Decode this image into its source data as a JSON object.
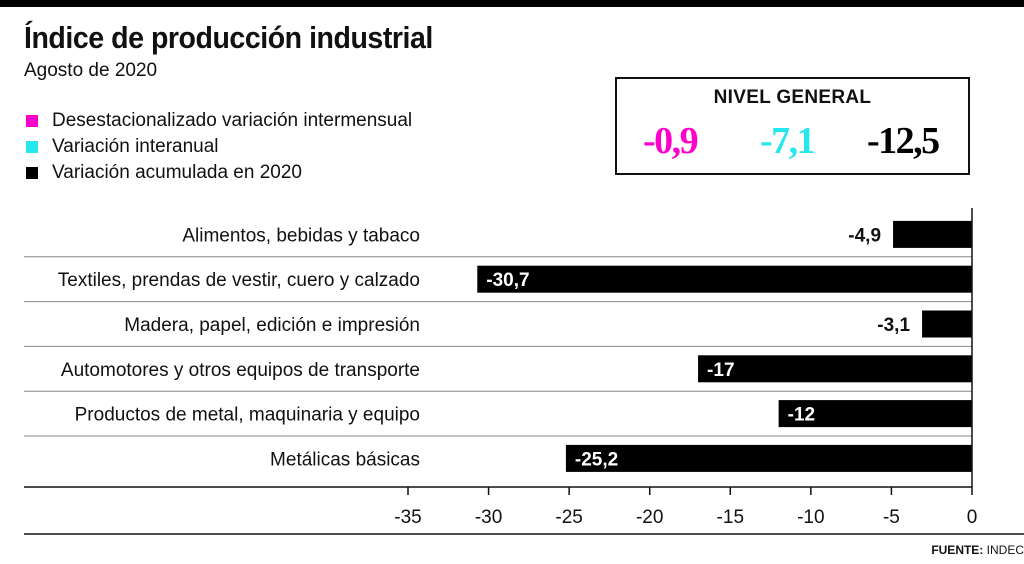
{
  "header": {
    "title": "Índice de producción industrial",
    "subtitle": "Agosto de 2020"
  },
  "legend": [
    {
      "label": "Desestacionalizado variación intermensual",
      "color": "#ff00cc"
    },
    {
      "label": "Variación interanual",
      "color": "#26e6f0"
    },
    {
      "label": "Variación acumulada en 2020",
      "color": "#000000"
    }
  ],
  "nivel_general": {
    "title": "NIVEL GENERAL",
    "values": [
      {
        "text": "-0,9",
        "color": "#ff00cc"
      },
      {
        "text": "-7,1",
        "color": "#26e6f0"
      },
      {
        "text": "-12,5",
        "color": "#000000"
      }
    ]
  },
  "chart_data": {
    "type": "bar",
    "orientation": "horizontal",
    "categories": [
      "Alimentos, bebidas y tabaco",
      "Textiles, prendas de vestir, cuero y calzado",
      "Madera, papel, edición e impresión",
      "Automotores y otros equipos de transporte",
      "Productos de metal, maquinaria y equipo",
      "Metálicas básicas"
    ],
    "values": [
      -4.9,
      -30.7,
      -3.1,
      -17,
      -12,
      -25.2
    ],
    "value_labels": [
      "-4,9",
      "-30,7",
      "-3,1",
      "-17",
      "-12",
      "-25,2"
    ],
    "xlim": [
      -35,
      0
    ],
    "xticks": [
      -35,
      -30,
      -25,
      -20,
      -15,
      -10,
      -5,
      0
    ],
    "bar_color": "#000000"
  },
  "footer": {
    "source_label": "FUENTE:",
    "source_value": "INDEC"
  }
}
